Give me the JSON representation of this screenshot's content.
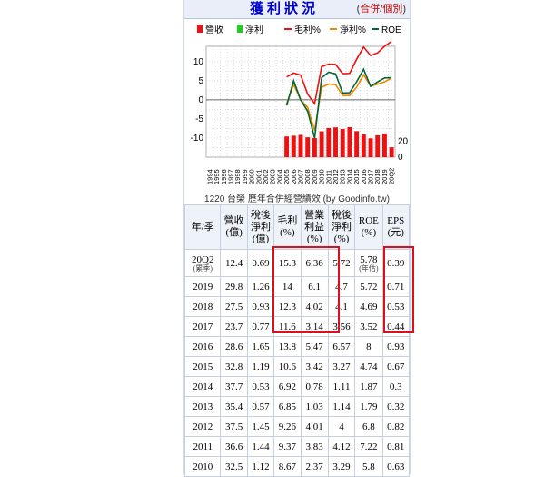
{
  "header": {
    "title": "獲利狀況",
    "link_open": "(",
    "link_consolidated": "合併",
    "link_sep": "/",
    "link_individual": "個別",
    "link_close": ")"
  },
  "caption": "1220 台榮 歷年合併經營績效 (by Goodinfo.tw)",
  "chart_data": {
    "type": "bar+line",
    "legend": [
      "營收",
      "淨利",
      "毛利%",
      "淨利%",
      "ROE"
    ],
    "colors": {
      "營收": "#ee1111",
      "淨利": "#22cc22",
      "毛利%": "#ee1111",
      "淨利%": "#ee8800",
      "ROE": "#006633"
    },
    "x_labels": [
      "1994",
      "1995",
      "1996",
      "1997",
      "1998",
      "1999",
      "2000",
      "2001",
      "2002",
      "2003",
      "2004",
      "2005",
      "2006",
      "2007",
      "2008",
      "2009",
      "2010",
      "2011",
      "2012",
      "2013",
      "2014",
      "2015",
      "2016",
      "2017",
      "2018",
      "2019",
      "20Q2"
    ],
    "left_axis": {
      "ticks": [
        10,
        5,
        0,
        -5,
        -10
      ],
      "range": [
        -15,
        14
      ]
    },
    "right_axis": {
      "ticks": [
        20,
        0
      ]
    },
    "series": [
      {
        "name": "營收",
        "x": [
          "2005",
          "2006",
          "2007",
          "2008",
          "2009",
          "2010",
          "2011",
          "2012",
          "2013",
          "2014",
          "2015",
          "2016",
          "2017",
          "2018",
          "2019",
          "20Q2"
        ],
        "values": [
          26,
          27,
          28,
          25,
          24,
          32.5,
          36.6,
          37.5,
          35.4,
          37.7,
          32.8,
          28.6,
          23.7,
          27.5,
          29.8,
          12.4
        ]
      },
      {
        "name": "毛利%",
        "x": [
          "2005",
          "2006",
          "2007",
          "2008",
          "2009",
          "2010",
          "2011",
          "2012",
          "2013",
          "2014",
          "2015",
          "2016",
          "2017",
          "2018",
          "2019",
          "20Q2"
        ],
        "values": [
          6,
          7,
          6.5,
          1.5,
          -1,
          8.67,
          9.37,
          9.26,
          6.85,
          6.92,
          10.6,
          13.8,
          11.6,
          12.3,
          14,
          15.3
        ]
      },
      {
        "name": "淨利%",
        "x": [
          "2005",
          "2006",
          "2007",
          "2008",
          "2009",
          "2010",
          "2011",
          "2012",
          "2013",
          "2014",
          "2015",
          "2016",
          "2017",
          "2018",
          "2019",
          "20Q2"
        ],
        "values": [
          -1,
          4,
          0,
          -2,
          -8,
          3.29,
          4.12,
          4,
          1.14,
          1.11,
          3.27,
          6.57,
          3.56,
          4.1,
          4.7,
          5.72
        ]
      },
      {
        "name": "ROE",
        "x": [
          "2005",
          "2006",
          "2007",
          "2008",
          "2009",
          "2010",
          "2011",
          "2012",
          "2013",
          "2014",
          "2015",
          "2016",
          "2017",
          "2018",
          "2019",
          "20Q2"
        ],
        "values": [
          -1.5,
          5,
          0,
          -3,
          -10,
          5.8,
          7.22,
          6.8,
          1.79,
          1.87,
          4.74,
          8,
          3.52,
          4.69,
          5.72,
          5.78
        ]
      }
    ]
  },
  "table": {
    "headers": [
      {
        "l1": "年/季",
        "l2": "",
        "l3": ""
      },
      {
        "l1": "營收",
        "l2": "(億)",
        "l3": ""
      },
      {
        "l1": "稅後",
        "l2": "淨利",
        "l3": "(億)"
      },
      {
        "l1": "毛利",
        "l2": "(%)",
        "l3": ""
      },
      {
        "l1": "營業",
        "l2": "利益",
        "l3": "(%)"
      },
      {
        "l1": "稅後",
        "l2": "淨利",
        "l3": "(%)"
      },
      {
        "l1": "ROE",
        "l2": "(%)",
        "l3": ""
      },
      {
        "l1": "EPS",
        "l2": "(元)",
        "l3": ""
      }
    ],
    "rows": [
      {
        "period": "20Q2",
        "period_note": "(累季)",
        "rev": "12.4",
        "ni": "0.69",
        "gm": "15.3",
        "om": "6.36",
        "nm": "5.72",
        "roe": "5.78",
        "roe_note": "(年估)",
        "eps": "0.39"
      },
      {
        "period": "2019",
        "period_note": "",
        "rev": "29.8",
        "ni": "1.26",
        "gm": "14",
        "om": "6.1",
        "nm": "4.7",
        "roe": "5.72",
        "roe_note": "",
        "eps": "0.71"
      },
      {
        "period": "2018",
        "period_note": "",
        "rev": "27.5",
        "ni": "0.93",
        "gm": "12.3",
        "om": "4.02",
        "nm": "4.1",
        "roe": "4.69",
        "roe_note": "",
        "eps": "0.53"
      },
      {
        "period": "2017",
        "period_note": "",
        "rev": "23.7",
        "ni": "0.77",
        "gm": "11.6",
        "om": "3.14",
        "nm": "3.56",
        "roe": "3.52",
        "roe_note": "",
        "eps": "0.44"
      },
      {
        "period": "2016",
        "period_note": "",
        "rev": "28.6",
        "ni": "1.65",
        "gm": "13.8",
        "om": "5.47",
        "nm": "6.57",
        "roe": "8",
        "roe_note": "",
        "eps": "0.93"
      },
      {
        "period": "2015",
        "period_note": "",
        "rev": "32.8",
        "ni": "1.19",
        "gm": "10.6",
        "om": "3.42",
        "nm": "3.27",
        "roe": "4.74",
        "roe_note": "",
        "eps": "0.67"
      },
      {
        "period": "2014",
        "period_note": "",
        "rev": "37.7",
        "ni": "0.53",
        "gm": "6.92",
        "om": "0.78",
        "nm": "1.11",
        "roe": "1.87",
        "roe_note": "",
        "eps": "0.3"
      },
      {
        "period": "2013",
        "period_note": "",
        "rev": "35.4",
        "ni": "0.57",
        "gm": "6.85",
        "om": "1.03",
        "nm": "1.14",
        "roe": "1.79",
        "roe_note": "",
        "eps": "0.32"
      },
      {
        "period": "2012",
        "period_note": "",
        "rev": "37.5",
        "ni": "1.45",
        "gm": "9.26",
        "om": "4.01",
        "nm": "4",
        "roe": "6.8",
        "roe_note": "",
        "eps": "0.82"
      },
      {
        "period": "2011",
        "period_note": "",
        "rev": "36.6",
        "ni": "1.44",
        "gm": "9.37",
        "om": "3.83",
        "nm": "4.12",
        "roe": "7.22",
        "roe_note": "",
        "eps": "0.81"
      },
      {
        "period": "2010",
        "period_note": "",
        "rev": "32.5",
        "ni": "1.12",
        "gm": "8.67",
        "om": "2.37",
        "nm": "3.29",
        "roe": "5.8",
        "roe_note": "",
        "eps": "0.63"
      }
    ]
  }
}
